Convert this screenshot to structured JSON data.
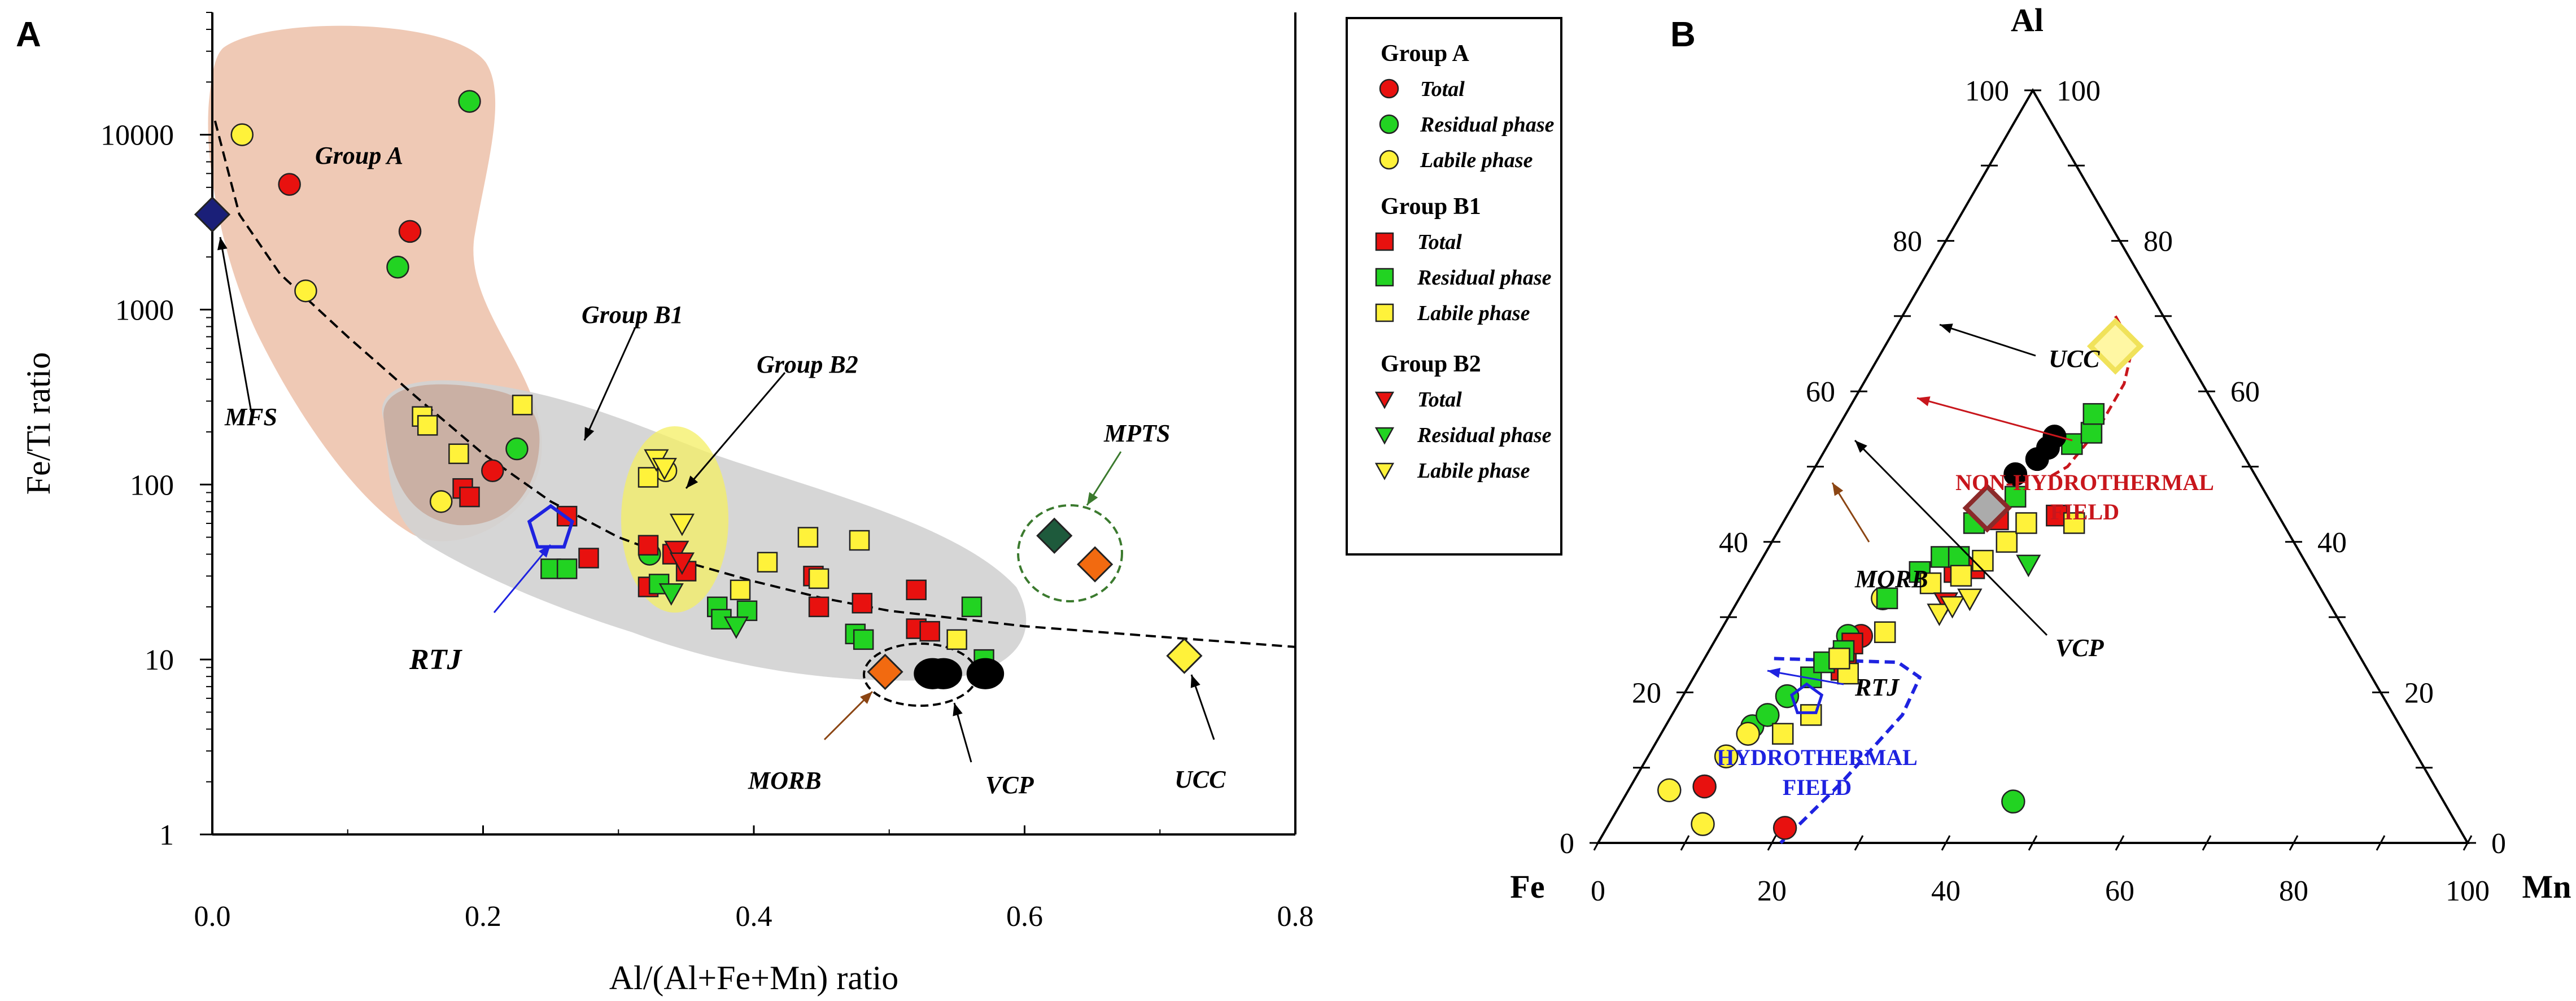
{
  "panel_a_letter": "A",
  "panel_b_letter": "B",
  "colors": {
    "red": "#e8110f",
    "green": "#22d322",
    "yellow": "#fff23a",
    "navy": "#1a1f78",
    "darkgreen": "#1e5a3c",
    "orange": "#f26a10",
    "black": "#000000",
    "blue": "#1e22e0",
    "darkred": "#c8161c",
    "groupA_fill": "#efc9b5",
    "groupB_fill": "#d2d2d2",
    "b2_fill": "#f5f06a"
  },
  "legend": {
    "groups": [
      {
        "name": "Group A",
        "marker": "circle",
        "items": [
          "Total",
          "Residual phase",
          "Labile phase"
        ]
      },
      {
        "name": "Group B1",
        "marker": "square",
        "items": [
          "Total",
          "Residual phase",
          "Labile phase"
        ]
      },
      {
        "name": "Group B2",
        "marker": "triangle",
        "items": [
          "Total",
          "Residual phase",
          "Labile phase"
        ]
      }
    ]
  },
  "chart_data": [
    {
      "panel": "A",
      "type": "scatter",
      "xlabel": "Al/(Al+Fe+Mn) ratio",
      "ylabel": "Fe/Ti ratio",
      "xlim": [
        0,
        0.8
      ],
      "ylim": [
        1,
        50000
      ],
      "yscale": "log",
      "xticks": [
        0.0,
        0.2,
        0.4,
        0.6,
        0.8
      ],
      "xtick_labels": [
        "0.0",
        "0.2",
        "0.4",
        "0.6",
        "0.8"
      ],
      "yticks": [
        1,
        10,
        100,
        1000,
        10000
      ],
      "ytick_labels": [
        "1",
        "10",
        "100",
        "1000",
        "10000"
      ],
      "series": [
        {
          "name": "Group A Total",
          "marker": "circle",
          "color": "red",
          "points": [
            [
              0.057,
              5200
            ],
            [
              0.146,
              2800
            ],
            [
              0.207,
              120
            ]
          ]
        },
        {
          "name": "Group A Residual phase",
          "marker": "circle",
          "color": "green",
          "points": [
            [
              0.19,
              15500
            ],
            [
              0.137,
              1750
            ],
            [
              0.225,
              160
            ],
            [
              0.323,
              40
            ]
          ]
        },
        {
          "name": "Group A Labile phase",
          "marker": "circle",
          "color": "yellow",
          "points": [
            [
              0.022,
              10000
            ],
            [
              0.069,
              1280
            ],
            [
              0.169,
              80
            ],
            [
              0.335,
              120
            ]
          ]
        },
        {
          "name": "Group B1 Total",
          "marker": "square",
          "color": "red",
          "points": [
            [
              0.185,
              95
            ],
            [
              0.19,
              85
            ],
            [
              0.262,
              66
            ],
            [
              0.278,
              38
            ],
            [
              0.322,
              45
            ],
            [
              0.322,
              26
            ],
            [
              0.34,
              40
            ],
            [
              0.35,
              32
            ],
            [
              0.444,
              30
            ],
            [
              0.448,
              20
            ],
            [
              0.48,
              21
            ],
            [
              0.52,
              25
            ],
            [
              0.52,
              15
            ],
            [
              0.53,
              14.5
            ]
          ]
        },
        {
          "name": "Group B1 Residual phase",
          "marker": "square",
          "color": "green",
          "points": [
            [
              0.25,
              33
            ],
            [
              0.262,
              33
            ],
            [
              0.33,
              27
            ],
            [
              0.373,
              20
            ],
            [
              0.376,
              17
            ],
            [
              0.395,
              19
            ],
            [
              0.475,
              14
            ],
            [
              0.481,
              13
            ],
            [
              0.561,
              20
            ],
            [
              0.57,
              10
            ]
          ]
        },
        {
          "name": "Group B1 Labile phase",
          "marker": "square",
          "color": "yellow",
          "points": [
            [
              0.155,
              245
            ],
            [
              0.159,
              218
            ],
            [
              0.182,
              150
            ],
            [
              0.229,
              285
            ],
            [
              0.322,
              110
            ],
            [
              0.39,
              25
            ],
            [
              0.41,
              36
            ],
            [
              0.44,
              50
            ],
            [
              0.448,
              29
            ],
            [
              0.478,
              48
            ],
            [
              0.55,
              13
            ]
          ]
        },
        {
          "name": "Group B2 Total",
          "marker": "triangle",
          "color": "red",
          "points": [
            [
              0.343,
              42
            ],
            [
              0.347,
              36
            ]
          ]
        },
        {
          "name": "Group B2 Residual phase",
          "marker": "triangle",
          "color": "green",
          "points": [
            [
              0.339,
              24
            ],
            [
              0.387,
              15.5
            ]
          ]
        },
        {
          "name": "Group B2 Labile phase",
          "marker": "triangle",
          "color": "yellow",
          "points": [
            [
              0.328,
              140
            ],
            [
              0.334,
              125
            ],
            [
              0.347,
              60
            ]
          ]
        }
      ],
      "references": [
        {
          "name": "MFS",
          "marker": "diamond",
          "color": "navy",
          "point": [
            0.0,
            3500
          ]
        },
        {
          "name": "RTJ",
          "marker": "pentagon",
          "color": "blue",
          "point": [
            0.25,
            56
          ]
        },
        {
          "name": "MORB",
          "marker": "diamond",
          "color": "orange",
          "point": [
            0.497,
            8.5
          ]
        },
        {
          "name": "VCP",
          "marker": "ellipse",
          "color": "black",
          "points": [
            [
              0.532,
              8.3
            ],
            [
              0.54,
              8.3
            ],
            [
              0.571,
              8.3
            ]
          ]
        },
        {
          "name": "MPTS",
          "marker": "diamond",
          "color": [
            "darkgreen",
            "orange"
          ],
          "points": [
            [
              0.622,
              51
            ],
            [
              0.652,
              35
            ]
          ]
        },
        {
          "name": "UCC",
          "marker": "diamond",
          "color": "yellow",
          "point": [
            0.718,
            10.5
          ]
        }
      ],
      "trend_curve": [
        [
          0.002,
          12000
        ],
        [
          0.02,
          3500
        ],
        [
          0.05,
          1600
        ],
        [
          0.1,
          700
        ],
        [
          0.15,
          320
        ],
        [
          0.2,
          150
        ],
        [
          0.25,
          80
        ],
        [
          0.3,
          50
        ],
        [
          0.35,
          36
        ],
        [
          0.4,
          28
        ],
        [
          0.45,
          22.5
        ],
        [
          0.5,
          19
        ],
        [
          0.6,
          15.5
        ],
        [
          0.7,
          13.5
        ],
        [
          0.8,
          11.8
        ]
      ],
      "labels": {
        "group_a": "Group A",
        "group_b1": "Group B1",
        "group_b2": "Group B2",
        "mfs": "MFS",
        "rtj": "RTJ",
        "morb": "MORB",
        "vcp": "VCP",
        "mpts": "MPTS",
        "ucc": "UCC"
      }
    },
    {
      "panel": "B",
      "type": "scatter",
      "subtype": "ternary",
      "apices": {
        "top": "Al",
        "left": "Fe",
        "right": "Mn"
      },
      "bottom_ticks": [
        "0",
        "20",
        "40",
        "60",
        "80",
        "100"
      ],
      "left_ticks": [
        "100",
        "80",
        "60",
        "40",
        "20",
        "0"
      ],
      "right_ticks": [
        "100",
        "80",
        "60",
        "40",
        "20",
        "0"
      ],
      "series": [
        {
          "name": "Group A Total",
          "marker": "circle",
          "color": "red",
          "points": [
            [
              8.5,
              7.5
            ],
            [
              20.5,
              2
            ],
            [
              15.5,
              25
            ],
            [
              16.5,
              27.5
            ]
          ]
        },
        {
          "name": "Group A Residual phase",
          "marker": "circle",
          "color": "green",
          "points": [
            [
              45,
              5.5
            ],
            [
              10,
              15.5
            ],
            [
              11,
              17
            ],
            [
              12,
              19.5
            ],
            [
              15,
              27.5
            ]
          ]
        },
        {
          "name": "Group A Labile phase",
          "marker": "circle",
          "color": "yellow",
          "points": [
            [
              10.8,
              2.5
            ],
            [
              4.7,
              7
            ],
            [
              9,
              11.5
            ],
            [
              10,
              14.5
            ],
            [
              16.5,
              32.5
            ]
          ]
        },
        {
          "name": "Group B1 Total",
          "marker": "square",
          "color": "red",
          "points": [
            [
              16.5,
              23
            ],
            [
              16,
              25
            ],
            [
              16,
              26.5
            ],
            [
              23,
              36
            ],
            [
              24.5,
              43
            ],
            [
              31,
              43.5
            ],
            [
              25,
              36.5
            ]
          ]
        },
        {
          "name": "Group B1 Residual phase",
          "marker": "square",
          "color": "green",
          "points": [
            [
              13.5,
              22
            ],
            [
              14,
              24
            ],
            [
              15.5,
              25.5
            ],
            [
              17,
              32.5
            ],
            [
              19,
              36
            ],
            [
              20.5,
              38
            ],
            [
              22.5,
              38
            ],
            [
              22,
              42.5
            ],
            [
              25,
              46
            ],
            [
              28,
              53
            ],
            [
              29.5,
              54.5
            ],
            [
              28.5,
              57
            ]
          ]
        },
        {
          "name": "Group B1 Labile phase",
          "marker": "square",
          "color": "yellow",
          "points": [
            [
              14,
              14.5
            ],
            [
              16,
              17
            ],
            [
              17.5,
              22.5
            ],
            [
              15.5,
              24.5
            ],
            [
              19,
              28
            ],
            [
              21,
              34.5
            ],
            [
              24,
              35.5
            ],
            [
              25.5,
              37.5
            ],
            [
              27,
              40
            ],
            [
              28,
              42.5
            ],
            [
              33.5,
              42.5
            ]
          ]
        },
        {
          "name": "Group B2 Total",
          "marker": "triangle",
          "color": "red",
          "points": [
            [
              24,
              32
            ],
            [
              26.5,
              32.5
            ]
          ]
        },
        {
          "name": "Group B2 Residual phase",
          "marker": "triangle",
          "color": "green",
          "points": [
            [
              31,
              37
            ]
          ]
        },
        {
          "name": "Group B2 Labile phase",
          "marker": "triangle",
          "color": "yellow",
          "points": [
            [
              24,
              30.5
            ],
            [
              25,
              31.5
            ],
            [
              26.5,
              32.5
            ]
          ]
        }
      ],
      "references": [
        {
          "name": "UCC",
          "marker": "diamond",
          "color": "yellow",
          "point": [
            26.5,
            66
          ]
        },
        {
          "name": "MORB",
          "marker": "diamond",
          "color": "gray",
          "point": [
            22.5,
            44.5
          ]
        },
        {
          "name": "VCP",
          "marker": "circle",
          "color": "black",
          "points": [
            [
              23.5,
              49
            ],
            [
              25,
              51
            ],
            [
              25.5,
              52.5
            ],
            [
              25.5,
              54
            ]
          ]
        },
        {
          "name": "RTJ",
          "marker": "pentagon",
          "color": "blue",
          "point": [
            14.5,
            19
          ]
        }
      ],
      "fields": {
        "non_hydrothermal": "NON-HYDROTHERMAL FIELD",
        "hydrothermal": "HYDROTHERMAL FIELD"
      },
      "labels": {
        "ucc": "UCC",
        "morb": "MORB",
        "vcp": "VCP",
        "rtj": "RTJ",
        "non_hydro_line1": "NON-HYDROTHERMAL",
        "non_hydro_line2": "FIELD",
        "hydro_line1": "HYDROTHERMAL",
        "hydro_line2": "FIELD"
      }
    }
  ]
}
